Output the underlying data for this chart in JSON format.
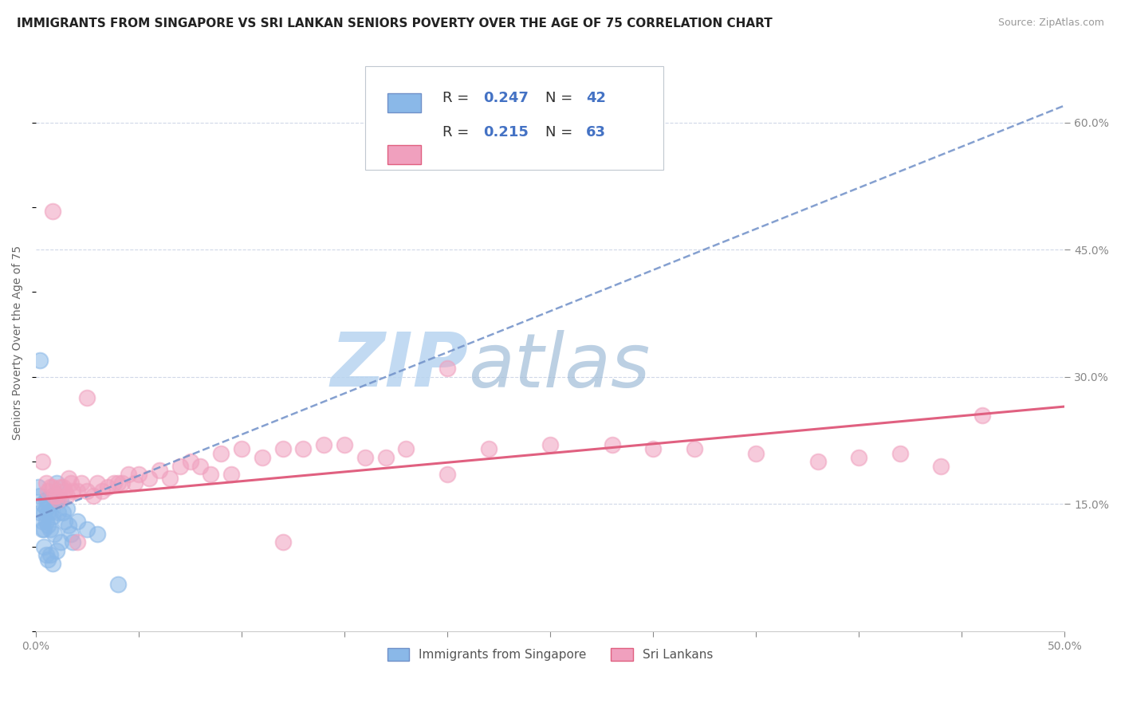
{
  "title": "IMMIGRANTS FROM SINGAPORE VS SRI LANKAN SENIORS POVERTY OVER THE AGE OF 75 CORRELATION CHART",
  "source": "Source: ZipAtlas.com",
  "ylabel": "Seniors Poverty Over the Age of 75",
  "xlim": [
    0.0,
    0.5
  ],
  "ylim": [
    0.0,
    0.68
  ],
  "xtick_labels": [
    "0.0%",
    "",
    "",
    "",
    "",
    "",
    "",
    "",
    "",
    "",
    "50.0%"
  ],
  "xtick_values": [
    0.0,
    0.05,
    0.1,
    0.15,
    0.2,
    0.25,
    0.3,
    0.35,
    0.4,
    0.45,
    0.5
  ],
  "ytick_labels": [
    "15.0%",
    "30.0%",
    "45.0%",
    "60.0%"
  ],
  "ytick_values": [
    0.15,
    0.3,
    0.45,
    0.6
  ],
  "blue_scatter_x": [
    0.001,
    0.002,
    0.002,
    0.003,
    0.003,
    0.003,
    0.004,
    0.004,
    0.004,
    0.005,
    0.005,
    0.005,
    0.005,
    0.006,
    0.006,
    0.006,
    0.006,
    0.007,
    0.007,
    0.007,
    0.008,
    0.008,
    0.008,
    0.009,
    0.009,
    0.01,
    0.01,
    0.01,
    0.011,
    0.012,
    0.012,
    0.013,
    0.014,
    0.015,
    0.016,
    0.017,
    0.018,
    0.02,
    0.025,
    0.03,
    0.002,
    0.04
  ],
  "blue_scatter_y": [
    0.17,
    0.16,
    0.14,
    0.15,
    0.13,
    0.12,
    0.14,
    0.12,
    0.1,
    0.155,
    0.145,
    0.13,
    0.09,
    0.155,
    0.14,
    0.125,
    0.085,
    0.14,
    0.12,
    0.09,
    0.16,
    0.135,
    0.08,
    0.155,
    0.115,
    0.175,
    0.155,
    0.095,
    0.14,
    0.155,
    0.105,
    0.14,
    0.13,
    0.145,
    0.125,
    0.115,
    0.105,
    0.13,
    0.12,
    0.115,
    0.32,
    0.055
  ],
  "pink_scatter_x": [
    0.003,
    0.005,
    0.006,
    0.007,
    0.008,
    0.009,
    0.01,
    0.011,
    0.012,
    0.013,
    0.014,
    0.015,
    0.016,
    0.017,
    0.018,
    0.02,
    0.022,
    0.025,
    0.028,
    0.03,
    0.032,
    0.035,
    0.038,
    0.04,
    0.042,
    0.045,
    0.048,
    0.05,
    0.055,
    0.06,
    0.065,
    0.07,
    0.075,
    0.08,
    0.085,
    0.09,
    0.095,
    0.1,
    0.11,
    0.12,
    0.13,
    0.14,
    0.15,
    0.16,
    0.17,
    0.18,
    0.2,
    0.22,
    0.25,
    0.28,
    0.3,
    0.32,
    0.35,
    0.38,
    0.4,
    0.42,
    0.44,
    0.46,
    0.008,
    0.02,
    0.025,
    0.2,
    0.12
  ],
  "pink_scatter_y": [
    0.2,
    0.175,
    0.165,
    0.17,
    0.17,
    0.16,
    0.16,
    0.155,
    0.17,
    0.17,
    0.165,
    0.16,
    0.18,
    0.175,
    0.165,
    0.165,
    0.175,
    0.165,
    0.16,
    0.175,
    0.165,
    0.17,
    0.175,
    0.175,
    0.175,
    0.185,
    0.175,
    0.185,
    0.18,
    0.19,
    0.18,
    0.195,
    0.2,
    0.195,
    0.185,
    0.21,
    0.185,
    0.215,
    0.205,
    0.215,
    0.215,
    0.22,
    0.22,
    0.205,
    0.205,
    0.215,
    0.185,
    0.215,
    0.22,
    0.22,
    0.215,
    0.215,
    0.21,
    0.2,
    0.205,
    0.21,
    0.195,
    0.255,
    0.495,
    0.105,
    0.275,
    0.31,
    0.105
  ],
  "blue_line_x": [
    0.0,
    0.5
  ],
  "blue_line_y": [
    0.135,
    0.62
  ],
  "pink_line_x": [
    0.0,
    0.5
  ],
  "pink_line_y": [
    0.155,
    0.265
  ],
  "watermark_zip": "ZIP",
  "watermark_atlas": "atlas",
  "watermark_color_zip": "#c8dff0",
  "watermark_color_atlas": "#b8cce0",
  "background_color": "#ffffff",
  "grid_color": "#d0d8e8",
  "title_fontsize": 11,
  "label_fontsize": 10,
  "tick_fontsize": 10,
  "legend_fontsize": 13,
  "blue_color": "#8ab8e8",
  "pink_color": "#f0a0be",
  "blue_line_color": "#7090c8",
  "pink_line_color": "#e06080"
}
